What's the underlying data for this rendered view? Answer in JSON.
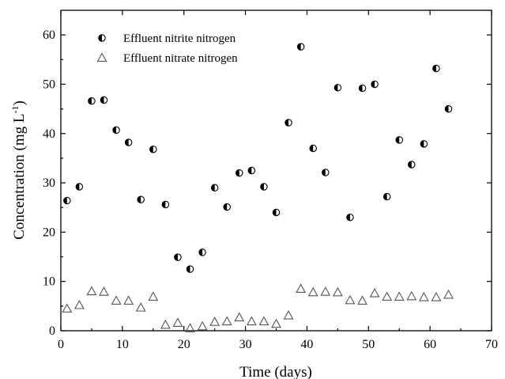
{
  "chart_data": {
    "type": "scatter",
    "xlabel": "Time (days)",
    "ylabel": "Concentration (mg L",
    "ylabel_superscript": "-1",
    "ylabel_suffix": ")",
    "xlim": [
      0,
      70
    ],
    "ylim": [
      0,
      65
    ],
    "xticks": [
      0,
      10,
      20,
      30,
      40,
      50,
      60,
      70
    ],
    "yticks": [
      0,
      10,
      20,
      30,
      40,
      50,
      60
    ],
    "grid": false,
    "legend_position": "top-left",
    "series": [
      {
        "name": "Effluent nitrite nitrogen",
        "marker": "half-filled-circle",
        "color": "#000000",
        "x": [
          1,
          3,
          5,
          7,
          9,
          11,
          13,
          15,
          17,
          19,
          21,
          23,
          25,
          27,
          29,
          31,
          33,
          35,
          37,
          39,
          41,
          43,
          45,
          47,
          49,
          51,
          53,
          55,
          57,
          59,
          61,
          63
        ],
        "y": [
          26.4,
          29.2,
          46.6,
          46.8,
          40.7,
          38.2,
          26.6,
          36.8,
          25.6,
          14.9,
          12.5,
          15.9,
          29.0,
          25.1,
          32.0,
          32.5,
          29.2,
          24.0,
          42.2,
          57.6,
          37.0,
          32.1,
          49.3,
          23.0,
          49.2,
          50.0,
          27.2,
          38.7,
          33.7,
          37.9,
          53.2,
          45.0
        ]
      },
      {
        "name": "Effluent nitrate nitrogen",
        "marker": "open-triangle",
        "color": "#555555",
        "x": [
          1,
          3,
          5,
          7,
          9,
          11,
          13,
          15,
          17,
          19,
          21,
          23,
          25,
          27,
          29,
          31,
          33,
          35,
          37,
          39,
          41,
          43,
          45,
          47,
          49,
          51,
          53,
          55,
          57,
          59,
          61,
          63
        ],
        "y": [
          4.5,
          5.2,
          8.0,
          7.9,
          6.1,
          6.1,
          4.7,
          6.9,
          1.2,
          1.6,
          0.5,
          0.9,
          1.8,
          1.9,
          2.7,
          1.9,
          1.9,
          1.4,
          3.1,
          8.5,
          7.8,
          7.9,
          7.8,
          6.2,
          6.1,
          7.6,
          6.9,
          6.9,
          7.0,
          6.8,
          6.8,
          7.3
        ]
      }
    ]
  }
}
